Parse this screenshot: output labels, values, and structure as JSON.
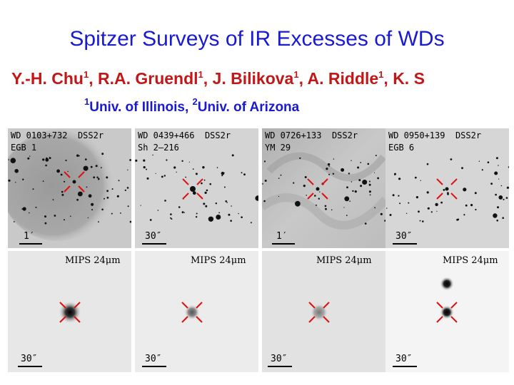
{
  "slide": {
    "title": "Spitzer Surveys of IR Excesses of WDs",
    "authors": [
      {
        "name": "Y.-H. Chu",
        "aff": "1",
        "sep": ", "
      },
      {
        "name": "R.A. Gruendl",
        "aff": "1",
        "sep": ", "
      },
      {
        "name": "J. Bilikova",
        "aff": "1",
        "sep": ", "
      },
      {
        "name": "A. Riddle",
        "aff": "1",
        "sep": ", "
      },
      {
        "name": "K. S",
        "aff": "",
        "sep": ""
      }
    ],
    "affiliations": [
      {
        "mark": "1",
        "text": "Univ. of Illinois, "
      },
      {
        "mark": "2",
        "text": "Univ. of Arizona"
      }
    ]
  },
  "dss_panels": [
    {
      "object": "WD 0103+732",
      "survey": "DSS2r",
      "nebula": "EGB 1",
      "scale": "1′"
    },
    {
      "object": "WD 0439+466",
      "survey": "DSS2r",
      "nebula": "Sh 2–216",
      "scale": "30″"
    },
    {
      "object": "WD 0726+133",
      "survey": "DSS2r",
      "nebula": "YM 29",
      "scale": "1′"
    },
    {
      "object": "WD 0950+139",
      "survey": "DSS2r",
      "nebula": "EGB 6",
      "scale": "30″"
    }
  ],
  "mips_panels": [
    {
      "band": "MIPS 24μm",
      "scale": "30″"
    },
    {
      "band": "MIPS 24μm",
      "scale": "30″"
    },
    {
      "band": "MIPS 24μm",
      "scale": "30″"
    },
    {
      "band": "MIPS 24μm",
      "scale": "30″"
    }
  ],
  "colors": {
    "title": "#1a1ad0",
    "authors": "#c01818",
    "marker": "#e01010"
  }
}
